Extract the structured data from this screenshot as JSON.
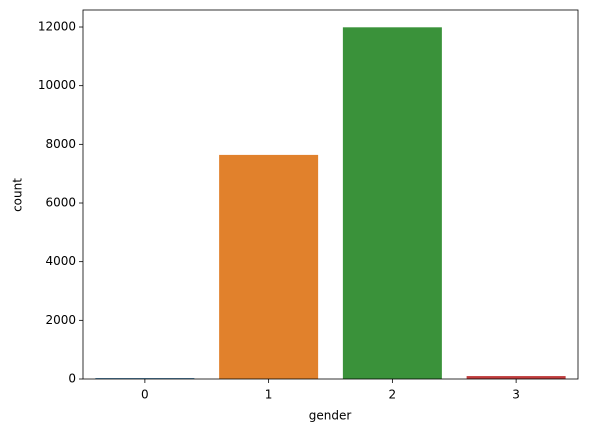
{
  "chart_data": {
    "type": "bar",
    "x_label": "gender",
    "y_label": "count",
    "categories": [
      "0",
      "1",
      "2",
      "3"
    ],
    "values": [
      30,
      7640,
      11990,
      100
    ],
    "colors": [
      "#3274a1",
      "#e1812c",
      "#3a923a",
      "#c03d3e"
    ],
    "ylim": [
      0,
      12580
    ],
    "yticks": [
      0,
      2000,
      4000,
      6000,
      8000,
      10000,
      12000
    ],
    "grid": false
  }
}
